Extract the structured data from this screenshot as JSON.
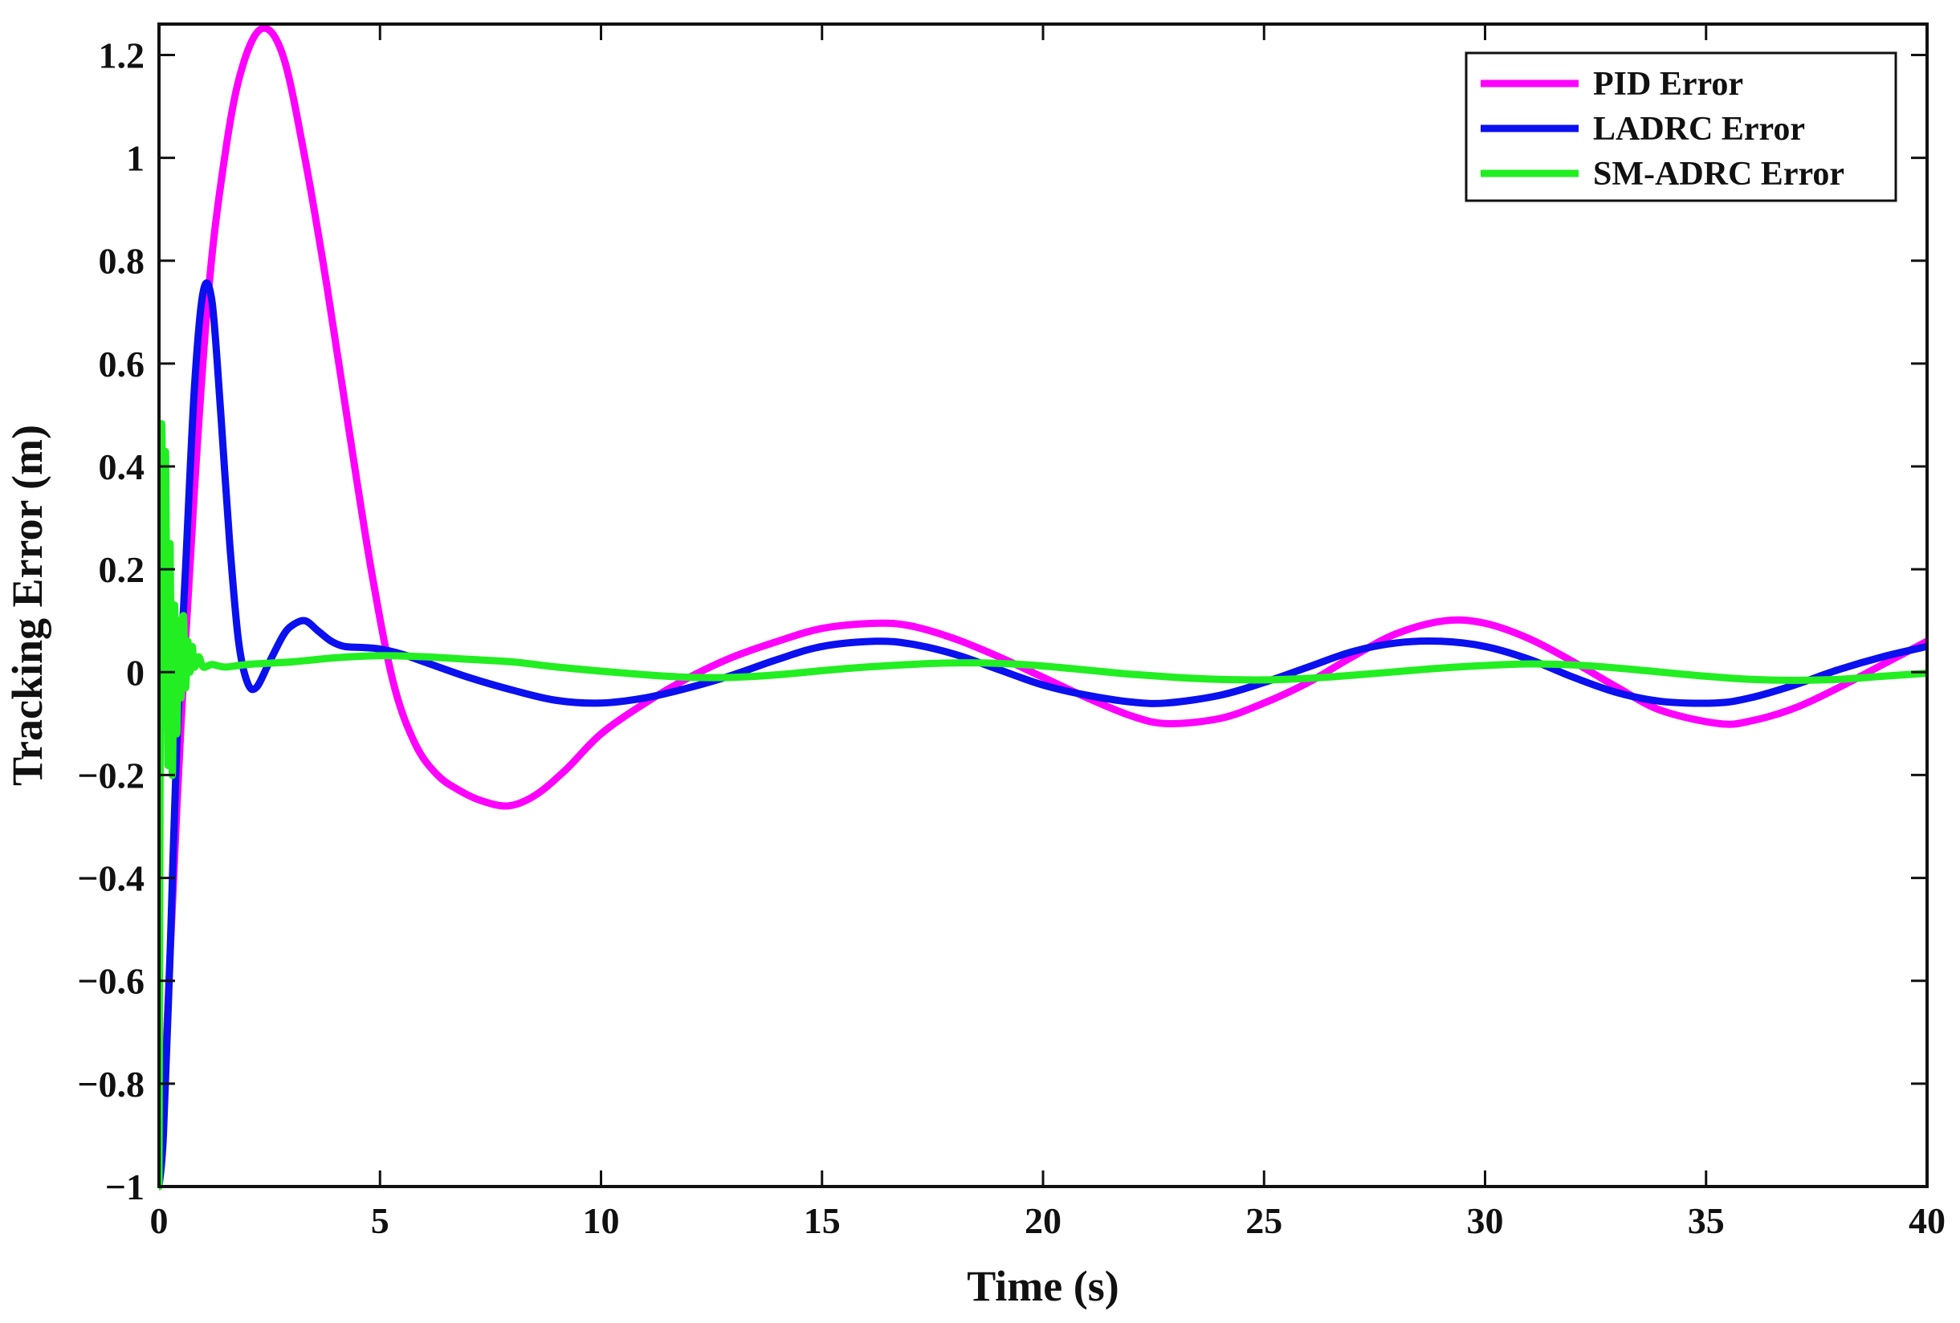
{
  "chart_data": {
    "type": "line",
    "title": "",
    "xlabel": "Time (s)",
    "ylabel": "Tracking Error (m)",
    "xlim": [
      0,
      40
    ],
    "ylim": [
      -1,
      1.26
    ],
    "xticks": [
      0,
      5,
      10,
      15,
      20,
      25,
      30,
      35,
      40
    ],
    "xtick_labels": [
      "0",
      "5",
      "10",
      "15",
      "20",
      "25",
      "30",
      "35",
      "40"
    ],
    "yticks": [
      -1,
      -0.8,
      -0.6,
      -0.4,
      -0.2,
      0,
      0.2,
      0.4,
      0.6,
      0.8,
      1,
      1.2
    ],
    "ytick_labels": [
      "−1",
      "−0.8",
      "−0.6",
      "−0.4",
      "−0.2",
      "0",
      "0.2",
      "0.4",
      "0.6",
      "0.8",
      "1",
      "1.2"
    ],
    "grid": false,
    "legend_position": "top-right",
    "series": [
      {
        "name": "PID Error",
        "color": "#ff00ff",
        "x": [
          0,
          0.1,
          0.25,
          0.5,
          0.8,
          1.1,
          1.4,
          1.8,
          2.3,
          2.8,
          3.3,
          3.8,
          4.3,
          4.8,
          5.3,
          5.8,
          6.3,
          6.8,
          7.3,
          7.9,
          8.5,
          9.2,
          10,
          11,
          12,
          13,
          14,
          15,
          16.2,
          17,
          18,
          19,
          20,
          21,
          22,
          22.8,
          24,
          25,
          26,
          27,
          28,
          29.1,
          30,
          31,
          32,
          33,
          34,
          35.3,
          36,
          37,
          38,
          39,
          40
        ],
        "y": [
          -1,
          -0.85,
          -0.55,
          -0.1,
          0.35,
          0.72,
          0.95,
          1.15,
          1.25,
          1.2,
          1.0,
          0.75,
          0.47,
          0.2,
          -0.02,
          -0.14,
          -0.2,
          -0.23,
          -0.25,
          -0.26,
          -0.24,
          -0.19,
          -0.12,
          -0.06,
          -0.01,
          0.03,
          0.06,
          0.085,
          0.095,
          0.09,
          0.065,
          0.03,
          -0.01,
          -0.05,
          -0.085,
          -0.1,
          -0.09,
          -0.06,
          -0.02,
          0.03,
          0.075,
          0.1,
          0.095,
          0.065,
          0.02,
          -0.03,
          -0.075,
          -0.1,
          -0.095,
          -0.07,
          -0.03,
          0.015,
          0.06
        ]
      },
      {
        "name": "LADRC Error",
        "color": "#0a10ee",
        "x": [
          0,
          0.1,
          0.25,
          0.4,
          0.6,
          0.8,
          1.0,
          1.2,
          1.4,
          1.6,
          1.8,
          2.0,
          2.2,
          2.5,
          2.8,
          3.0,
          3.3,
          3.6,
          3.9,
          4.2,
          4.6,
          5.0,
          5.5,
          6.0,
          7.0,
          8.0,
          9.0,
          10.0,
          11.0,
          12.0,
          13.0,
          14.0,
          15.0,
          16.2,
          17.0,
          18.0,
          19.0,
          20.0,
          21.0,
          22.0,
          22.8,
          24.0,
          25.0,
          26.0,
          27.0,
          28.0,
          29.0,
          30.0,
          31.0,
          32.0,
          33.0,
          34.0,
          35.2,
          36.0,
          37.0,
          38.0,
          39.0,
          40.0
        ],
        "y": [
          -1,
          -0.9,
          -0.55,
          -0.15,
          0.2,
          0.55,
          0.74,
          0.72,
          0.5,
          0.25,
          0.06,
          -0.02,
          -0.03,
          0.02,
          0.07,
          0.09,
          0.1,
          0.08,
          0.06,
          0.05,
          0.048,
          0.045,
          0.035,
          0.02,
          -0.01,
          -0.035,
          -0.055,
          -0.06,
          -0.05,
          -0.03,
          -0.005,
          0.025,
          0.05,
          0.06,
          0.055,
          0.035,
          0.005,
          -0.025,
          -0.045,
          -0.058,
          -0.06,
          -0.045,
          -0.02,
          0.01,
          0.04,
          0.057,
          0.06,
          0.05,
          0.025,
          -0.01,
          -0.04,
          -0.057,
          -0.06,
          -0.05,
          -0.025,
          0.005,
          0.03,
          0.05
        ]
      },
      {
        "name": "SM-ADRC Error",
        "color": "#22ee22",
        "x": [
          0,
          0.05,
          0.1,
          0.15,
          0.2,
          0.25,
          0.3,
          0.35,
          0.4,
          0.45,
          0.5,
          0.55,
          0.6,
          0.65,
          0.7,
          0.75,
          0.8,
          0.9,
          1.0,
          1.2,
          1.5,
          2.0,
          3.0,
          4.0,
          5.0,
          6.0,
          7.0,
          8.0,
          9.0,
          10.0,
          11.0,
          12.0,
          13.0,
          14.0,
          15.0,
          16.0,
          17.0,
          18.0,
          19.0,
          20.0,
          21.0,
          22.0,
          23.0,
          24.0,
          25.0,
          26.0,
          27.0,
          28.0,
          29.0,
          30.0,
          31.0,
          32.0,
          33.0,
          34.0,
          35.0,
          36.0,
          37.0,
          38.0,
          39.0,
          40.0
        ],
        "y": [
          -1,
          0.43,
          0.2,
          0.42,
          -0.18,
          0.25,
          -0.2,
          0.13,
          -0.12,
          0.1,
          -0.05,
          0.11,
          -0.03,
          0.06,
          0.0,
          0.05,
          0.01,
          0.03,
          0.01,
          0.015,
          0.01,
          0.015,
          0.02,
          0.028,
          0.032,
          0.03,
          0.025,
          0.02,
          0.01,
          0.002,
          -0.005,
          -0.01,
          -0.01,
          -0.005,
          0.003,
          0.01,
          0.015,
          0.018,
          0.017,
          0.012,
          0.004,
          -0.004,
          -0.01,
          -0.014,
          -0.015,
          -0.012,
          -0.006,
          0.001,
          0.008,
          0.013,
          0.016,
          0.014,
          0.008,
          0.0,
          -0.008,
          -0.014,
          -0.016,
          -0.014,
          -0.008,
          -0.002
        ]
      }
    ]
  }
}
